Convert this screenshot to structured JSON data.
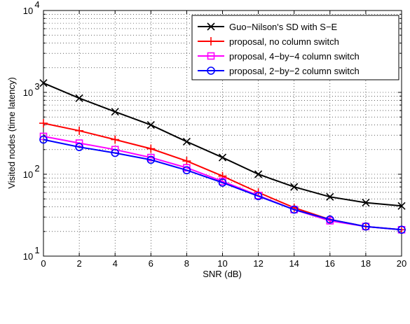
{
  "chart_data": {
    "type": "line",
    "xlabel": "SNR (dB)",
    "ylabel": "Visited nodes (time latency)",
    "xlim": [
      0,
      20
    ],
    "ylim": [
      10,
      10000
    ],
    "yscale": "log",
    "grid": true,
    "legend_position": "top-right",
    "x_ticks": [
      0,
      2,
      4,
      6,
      8,
      10,
      12,
      14,
      16,
      18,
      20
    ],
    "x_tick_labels": [
      "0",
      "2",
      "4",
      "6",
      "8",
      "10",
      "12",
      "14",
      "16",
      "18",
      "20"
    ],
    "y_ticks": [
      10,
      100,
      1000,
      10000
    ],
    "y_tick_labels": [
      {
        "base": "10",
        "exp": "1"
      },
      {
        "base": "10",
        "exp": "2"
      },
      {
        "base": "10",
        "exp": "3"
      },
      {
        "base": "10",
        "exp": "4"
      }
    ],
    "x": [
      0,
      2,
      4,
      6,
      8,
      10,
      12,
      14,
      16,
      18,
      20
    ],
    "series": [
      {
        "name": "Guo−Nilson's SD with S−E",
        "color": "#000000",
        "marker": "x",
        "values": [
          1300,
          850,
          580,
          400,
          250,
          160,
          100,
          70,
          53,
          45,
          41
        ]
      },
      {
        "name": "proposal, no column switch",
        "color": "#ff0000",
        "marker": "plus",
        "values": [
          420,
          340,
          265,
          205,
          145,
          95,
          60,
          39,
          28,
          23,
          21
        ]
      },
      {
        "name": "proposal, 4−by−4 column switch",
        "color": "#ff00ff",
        "marker": "square",
        "values": [
          290,
          240,
          200,
          160,
          120,
          82,
          55,
          37,
          27,
          23,
          21
        ]
      },
      {
        "name": "proposal, 2−by−2 column switch",
        "color": "#0000ff",
        "marker": "circle",
        "values": [
          265,
          215,
          182,
          150,
          112,
          79,
          54,
          37,
          28,
          23,
          21
        ]
      }
    ]
  }
}
